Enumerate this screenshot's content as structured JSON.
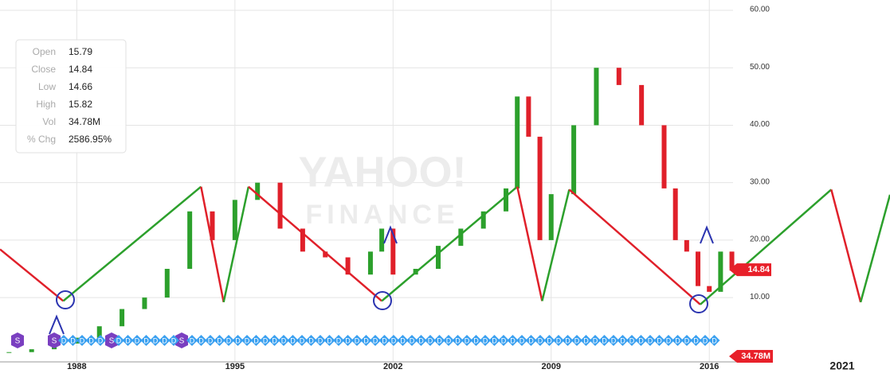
{
  "chart_data": {
    "type": "candlestick",
    "watermark": [
      "YAHOO!",
      "FINANCE"
    ],
    "info_box": [
      [
        "Open",
        "15.79"
      ],
      [
        "Close",
        "14.84"
      ],
      [
        "Low",
        "14.66"
      ],
      [
        "High",
        "15.82"
      ],
      [
        "Vol",
        "34.78M"
      ],
      [
        "% Chg",
        "2586.95%"
      ]
    ],
    "x": [
      1985,
      1986,
      1987,
      1988,
      1989,
      1990,
      1991,
      1992,
      1993,
      1994,
      1995,
      1996,
      1997,
      1998,
      1999,
      2000,
      2001,
      2001.5,
      2002,
      2003,
      2004,
      2005,
      2006,
      2007,
      2007.5,
      2008,
      2008.5,
      2009,
      2010,
      2011,
      2012,
      2013,
      2014,
      2014.5,
      2015,
      2015.5,
      2016,
      2016.5,
      2017
    ],
    "values": [
      0.5,
      1,
      2,
      3,
      5,
      8,
      10,
      15,
      25,
      20,
      27,
      30,
      22,
      18,
      17,
      14,
      18,
      22,
      14,
      15,
      19,
      22,
      25,
      29,
      45,
      38,
      20,
      28,
      40,
      50,
      47,
      40,
      29,
      20,
      18,
      12,
      11,
      18,
      15
    ],
    "up_color": "#2ca02c",
    "down_color": "#e0202a",
    "zigzag": {
      "x": [
        1984.6,
        1987.4,
        1993.5,
        1994.5,
        1995.6,
        2001.5,
        2007.5,
        2008.6,
        2009.8,
        2015.6,
        2021.4,
        2022.7,
        2024.0
      ],
      "values": [
        18.4,
        9.4,
        29.3,
        9.2,
        29.3,
        9.4,
        29.3,
        9.4,
        28.8,
        8.8,
        28.8,
        9.2,
        27.9
      ]
    },
    "xlim": [
      1984.6,
      2024.0
    ],
    "xticks": [
      1988,
      1995,
      2002,
      2009,
      2016
    ],
    "forecast_label": "2021",
    "ylim": [
      -1.2,
      61.8
    ],
    "yticks": [
      {
        "value": 10,
        "label": "10.00"
      },
      {
        "value": 20,
        "label": "20.00"
      },
      {
        "value": 30,
        "label": "30.00"
      },
      {
        "value": 40,
        "label": "40.00"
      },
      {
        "value": 50,
        "label": "50.00"
      },
      {
        "value": 60,
        "label": "60.00"
      }
    ],
    "price_tag": {
      "value": 14.84,
      "label": "14.84"
    },
    "volume_tag": "34.78M",
    "event_markers": {
      "dividend": "D",
      "split": "S"
    },
    "grid": true
  }
}
